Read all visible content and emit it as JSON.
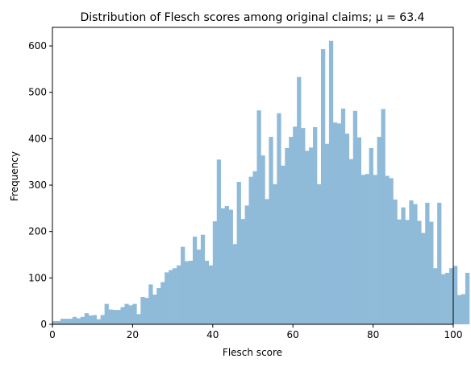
{
  "chart_data": {
    "type": "bar",
    "title": "Distribution of Flesch scores among original claims; μ = 63.4",
    "xlabel": "Flesch score",
    "ylabel": "Frequency",
    "xlim": [
      0,
      100
    ],
    "ylim": [
      0,
      640
    ],
    "xticks": [
      "0",
      "20",
      "40",
      "60",
      "80",
      "100"
    ],
    "yticks": [
      "0",
      "100",
      "200",
      "300",
      "400",
      "500",
      "600"
    ],
    "xtick_values": [
      0,
      20,
      40,
      60,
      80,
      100
    ],
    "ytick_values": [
      0,
      100,
      200,
      300,
      400,
      500,
      600
    ],
    "grid": false,
    "legend": "none",
    "bar_color": "#8fbbd9",
    "bin_start": 0,
    "bin_width": 1,
    "values": [
      7,
      7,
      12,
      12,
      12,
      16,
      13,
      16,
      24,
      19,
      20,
      11,
      20,
      44,
      32,
      31,
      31,
      37,
      44,
      41,
      44,
      22,
      59,
      57,
      86,
      64,
      78,
      91,
      112,
      117,
      121,
      127,
      167,
      136,
      137,
      189,
      161,
      193,
      137,
      127,
      222,
      355,
      250,
      255,
      247,
      173,
      307,
      227,
      256,
      318,
      330,
      461,
      364,
      270,
      404,
      302,
      455,
      342,
      380,
      404,
      426,
      533,
      423,
      374,
      381,
      425,
      302,
      593,
      389,
      611,
      435,
      433,
      465,
      411,
      356,
      460,
      403,
      322,
      324,
      380,
      322,
      404,
      464,
      320,
      315,
      269,
      226,
      252,
      225,
      267,
      259,
      223,
      197,
      262,
      221,
      121,
      262,
      108,
      111,
      121,
      126,
      63,
      65,
      111
    ]
  }
}
